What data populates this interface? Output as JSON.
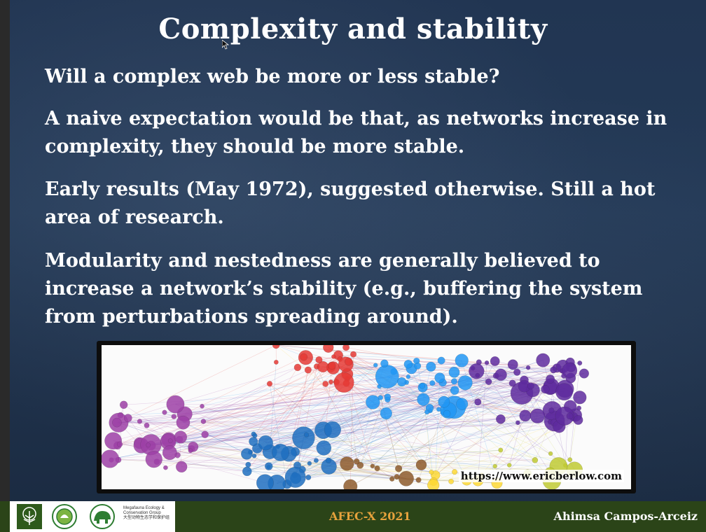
{
  "slide": {
    "title": "Complexity and stability",
    "paragraphs": [
      "Will a complex web be more or less stable?",
      "A naive expectation would be that, as networks increase in complexity, they should be more stable.",
      "Early results (May 1972), suggested otherwise. Still a hot area of research.",
      "Modularity and nestedness are generally believed to increase a network’s stability (e.g., buffering the system from perturbations spreading around)."
    ],
    "image_credit": "https://www.ericberlow.com"
  },
  "footer": {
    "group_name": "Megafauna Ecology & Conservation Group",
    "group_name_cn": "大型动物生态学和保护组",
    "course": "AFEC-X 2021",
    "presenter": "Ahimsa Campos-Arceiz"
  },
  "colors": {
    "background": "#213552",
    "footer_bg": "#2b4418",
    "course_text": "#e6a23c",
    "module_colors": [
      "#e53935",
      "#2196f3",
      "#5e2a9e",
      "#9c3fa6",
      "#1e6fc0",
      "#8d5a2b",
      "#c0ca33",
      "#fdd835"
    ]
  },
  "icons": [
    "tree-logo-icon",
    "university-seal-icon",
    "megafauna-elephant-logo-icon",
    "mouse-cursor-icon"
  ]
}
